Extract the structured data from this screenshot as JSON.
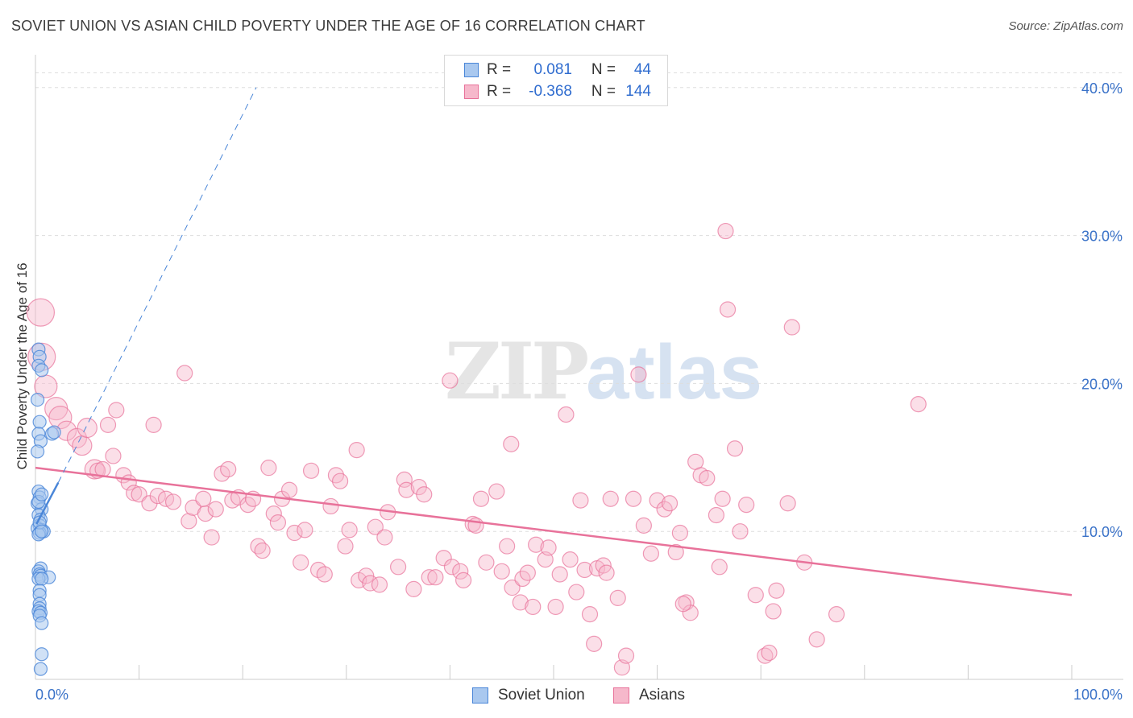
{
  "title": "SOVIET UNION VS ASIAN CHILD POVERTY UNDER THE AGE OF 16 CORRELATION CHART",
  "source": "Source: ZipAtlas.com",
  "watermark": {
    "zip": "ZIP",
    "atlas": "atlas"
  },
  "colors": {
    "blue": "#4a86d8",
    "blue_fill": "#a9c8ef",
    "pink": "#e8729a",
    "pink_fill": "#f6b8cb",
    "grid": "#dddddd",
    "tick_label": "#3a72c8"
  },
  "legend": {
    "rows": [
      {
        "label": "R =",
        "r": "0.081",
        "n_label": "N =",
        "n": "44",
        "series": "blue"
      },
      {
        "label": "R =",
        "r": "-0.368",
        "n_label": "N =",
        "n": "144",
        "series": "pink"
      }
    ]
  },
  "bottom_legend": [
    {
      "label": "Soviet Union",
      "series": "blue"
    },
    {
      "label": "Asians",
      "series": "pink"
    }
  ],
  "chart_data": {
    "type": "scatter",
    "title": "SOVIET UNION VS ASIAN CHILD POVERTY UNDER THE AGE OF 16 CORRELATION CHART",
    "xlabel": "",
    "ylabel": "Child Poverty Under the Age of 16",
    "xlim": [
      0,
      100
    ],
    "ylim": [
      0,
      42
    ],
    "x_tick_labels": [
      "0.0%",
      "100.0%"
    ],
    "y_ticks": [
      10,
      20,
      30,
      40
    ],
    "y_tick_labels": [
      "10.0%",
      "20.0%",
      "30.0%",
      "40.0%"
    ],
    "grid": true,
    "series": [
      {
        "name": "Soviet Union",
        "r": 0.081,
        "n": 44,
        "trend_solid": {
          "x": [
            0.1,
            2.2
          ],
          "y": [
            10.5,
            13.3
          ]
        },
        "trend_dashed": {
          "x": [
            2.2,
            21.3
          ],
          "y": [
            13.3,
            40.0
          ]
        },
        "points": [
          [
            0.3,
            22.3
          ],
          [
            0.4,
            21.8
          ],
          [
            0.3,
            21.2
          ],
          [
            0.6,
            20.9
          ],
          [
            0.2,
            18.9
          ],
          [
            0.4,
            17.4
          ],
          [
            0.3,
            16.6
          ],
          [
            0.5,
            16.1
          ],
          [
            0.2,
            15.4
          ],
          [
            1.6,
            16.6
          ],
          [
            1.8,
            16.7
          ],
          [
            0.3,
            12.7
          ],
          [
            0.4,
            12.3
          ],
          [
            0.2,
            11.9
          ],
          [
            0.6,
            11.5
          ],
          [
            0.3,
            11.1
          ],
          [
            0.5,
            10.8
          ],
          [
            0.4,
            10.4
          ],
          [
            0.2,
            10.2
          ],
          [
            0.6,
            10.1
          ],
          [
            0.8,
            10.0
          ],
          [
            0.4,
            9.9
          ],
          [
            0.3,
            9.8
          ],
          [
            0.5,
            7.5
          ],
          [
            0.3,
            7.3
          ],
          [
            0.4,
            7.1
          ],
          [
            0.5,
            7.0
          ],
          [
            1.3,
            6.9
          ],
          [
            0.3,
            6.8
          ],
          [
            0.6,
            6.8
          ],
          [
            0.4,
            6.0
          ],
          [
            0.4,
            5.7
          ],
          [
            0.4,
            5.1
          ],
          [
            0.4,
            4.8
          ],
          [
            0.3,
            4.6
          ],
          [
            0.5,
            4.5
          ],
          [
            0.4,
            4.3
          ],
          [
            0.6,
            3.8
          ],
          [
            0.6,
            1.7
          ],
          [
            0.5,
            0.7
          ],
          [
            0.3,
            12.0
          ],
          [
            0.6,
            12.5
          ],
          [
            0.4,
            10.6
          ],
          [
            0.6,
            10.0
          ]
        ]
      },
      {
        "name": "Asians",
        "r": -0.368,
        "n": 144,
        "trend": {
          "x": [
            0,
            100
          ],
          "y": [
            14.3,
            5.7
          ]
        },
        "points": [
          [
            0.5,
            24.8
          ],
          [
            0.6,
            21.8
          ],
          [
            1.0,
            19.8
          ],
          [
            2.0,
            18.3
          ],
          [
            2.4,
            17.7
          ],
          [
            3.0,
            16.8
          ],
          [
            4.0,
            16.3
          ],
          [
            4.5,
            15.8
          ],
          [
            5.0,
            17.0
          ],
          [
            7.0,
            17.2
          ],
          [
            7.8,
            18.2
          ],
          [
            7.5,
            15.1
          ],
          [
            5.7,
            14.2
          ],
          [
            6.0,
            14.1
          ],
          [
            6.5,
            14.2
          ],
          [
            8.5,
            13.8
          ],
          [
            9.0,
            13.3
          ],
          [
            9.5,
            12.6
          ],
          [
            10.0,
            12.5
          ],
          [
            11.0,
            11.9
          ],
          [
            11.4,
            17.2
          ],
          [
            11.8,
            12.4
          ],
          [
            12.6,
            12.2
          ],
          [
            13.3,
            12.0
          ],
          [
            14.4,
            20.7
          ],
          [
            14.8,
            10.7
          ],
          [
            15.2,
            11.6
          ],
          [
            16.4,
            11.2
          ],
          [
            16.2,
            12.2
          ],
          [
            17.0,
            9.6
          ],
          [
            17.4,
            11.5
          ],
          [
            18.0,
            13.9
          ],
          [
            18.6,
            14.2
          ],
          [
            19.0,
            12.1
          ],
          [
            19.6,
            12.3
          ],
          [
            20.5,
            11.8
          ],
          [
            21.0,
            12.2
          ],
          [
            21.5,
            9.0
          ],
          [
            21.9,
            8.7
          ],
          [
            22.5,
            14.3
          ],
          [
            23.0,
            11.2
          ],
          [
            23.4,
            10.6
          ],
          [
            23.8,
            12.2
          ],
          [
            24.5,
            12.8
          ],
          [
            25.0,
            9.9
          ],
          [
            25.6,
            7.9
          ],
          [
            26.0,
            10.1
          ],
          [
            26.6,
            14.1
          ],
          [
            27.3,
            7.4
          ],
          [
            27.9,
            7.1
          ],
          [
            28.5,
            11.7
          ],
          [
            29.0,
            13.8
          ],
          [
            29.4,
            13.4
          ],
          [
            29.9,
            9.0
          ],
          [
            30.3,
            10.1
          ],
          [
            31.0,
            15.5
          ],
          [
            31.2,
            6.7
          ],
          [
            31.9,
            7.0
          ],
          [
            32.3,
            6.5
          ],
          [
            32.8,
            10.3
          ],
          [
            33.2,
            6.4
          ],
          [
            33.7,
            9.6
          ],
          [
            34.0,
            11.3
          ],
          [
            35.0,
            7.6
          ],
          [
            35.6,
            13.5
          ],
          [
            35.8,
            12.8
          ],
          [
            36.5,
            6.1
          ],
          [
            37.0,
            13.0
          ],
          [
            37.5,
            12.5
          ],
          [
            38.0,
            6.9
          ],
          [
            38.6,
            6.9
          ],
          [
            39.4,
            8.2
          ],
          [
            40.0,
            20.2
          ],
          [
            40.2,
            7.6
          ],
          [
            41.0,
            7.3
          ],
          [
            41.3,
            6.7
          ],
          [
            42.2,
            10.5
          ],
          [
            42.5,
            10.4
          ],
          [
            43.0,
            12.2
          ],
          [
            43.5,
            7.9
          ],
          [
            44.5,
            12.7
          ],
          [
            45.0,
            7.3
          ],
          [
            45.5,
            9.0
          ],
          [
            45.9,
            15.9
          ],
          [
            46.0,
            6.2
          ],
          [
            46.8,
            5.2
          ],
          [
            47.0,
            6.8
          ],
          [
            47.5,
            7.2
          ],
          [
            48.0,
            4.9
          ],
          [
            48.3,
            9.1
          ],
          [
            49.2,
            8.1
          ],
          [
            49.5,
            8.9
          ],
          [
            50.2,
            4.9
          ],
          [
            50.6,
            7.1
          ],
          [
            51.2,
            17.9
          ],
          [
            51.6,
            8.1
          ],
          [
            52.2,
            5.9
          ],
          [
            52.6,
            12.1
          ],
          [
            53.0,
            7.4
          ],
          [
            53.5,
            4.4
          ],
          [
            53.9,
            2.4
          ],
          [
            54.2,
            7.5
          ],
          [
            54.8,
            7.7
          ],
          [
            55.1,
            7.2
          ],
          [
            55.5,
            12.2
          ],
          [
            56.2,
            5.5
          ],
          [
            56.6,
            0.8
          ],
          [
            57.0,
            1.6
          ],
          [
            57.7,
            12.2
          ],
          [
            58.2,
            20.6
          ],
          [
            58.7,
            10.4
          ],
          [
            59.4,
            8.5
          ],
          [
            60.0,
            12.1
          ],
          [
            60.7,
            11.5
          ],
          [
            61.2,
            11.9
          ],
          [
            61.8,
            8.6
          ],
          [
            62.2,
            9.9
          ],
          [
            62.8,
            5.2
          ],
          [
            63.2,
            4.5
          ],
          [
            63.7,
            14.7
          ],
          [
            64.2,
            13.8
          ],
          [
            64.8,
            13.6
          ],
          [
            65.7,
            11.1
          ],
          [
            66.0,
            7.6
          ],
          [
            66.3,
            12.2
          ],
          [
            66.6,
            30.3
          ],
          [
            66.8,
            25.0
          ],
          [
            67.5,
            15.6
          ],
          [
            68.0,
            10.0
          ],
          [
            68.6,
            11.8
          ],
          [
            69.5,
            5.7
          ],
          [
            70.4,
            1.6
          ],
          [
            70.8,
            1.8
          ],
          [
            71.2,
            4.6
          ],
          [
            71.5,
            6.0
          ],
          [
            72.6,
            11.9
          ],
          [
            73.0,
            23.8
          ],
          [
            74.2,
            7.9
          ],
          [
            75.4,
            2.7
          ],
          [
            77.3,
            4.4
          ],
          [
            85.2,
            18.6
          ],
          [
            62.5,
            5.1
          ]
        ]
      }
    ]
  }
}
